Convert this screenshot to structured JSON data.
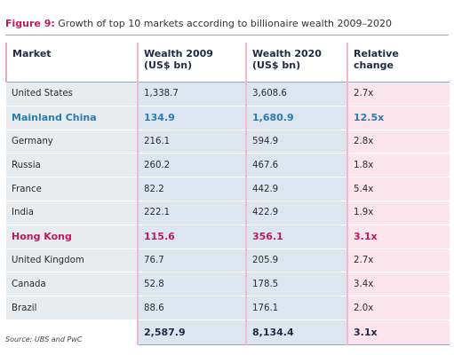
{
  "figure": {
    "label": "Figure 9:",
    "title": "Growth of top 10 markets according to billionaire wealth 2009–2020"
  },
  "table": {
    "headers": {
      "market": "Market",
      "wealth_2009_line1": "Wealth 2009",
      "wealth_2009_line2": "(US$ bn)",
      "wealth_2020_line1": "Wealth 2020",
      "wealth_2020_line2": "(US$ bn)",
      "relative_line1": "Relative",
      "relative_line2": "change"
    },
    "rows": [
      {
        "market": "United States",
        "w2009": "1,338.7",
        "w2020": "3,608.6",
        "rel": "2.7x"
      },
      {
        "market": "Mainland China",
        "w2009": "134.9",
        "w2020": "1,680.9",
        "rel": "12.5x"
      },
      {
        "market": "Germany",
        "w2009": "216.1",
        "w2020": "594.9",
        "rel": "2.8x"
      },
      {
        "market": "Russia",
        "w2009": "260.2",
        "w2020": "467.6",
        "rel": "1.8x"
      },
      {
        "market": "France",
        "w2009": "82.2",
        "w2020": "442.9",
        "rel": "5.4x"
      },
      {
        "market": "India",
        "w2009": "222.1",
        "w2020": "422.9",
        "rel": "1.9x"
      },
      {
        "market": "Hong Kong",
        "w2009": "115.6",
        "w2020": "356.1",
        "rel": "3.1x"
      },
      {
        "market": "United Kingdom",
        "w2009": "76.7",
        "w2020": "205.9",
        "rel": "2.7x"
      },
      {
        "market": "Canada",
        "w2009": "52.8",
        "w2020": "178.5",
        "rel": "3.4x"
      },
      {
        "market": "Brazil",
        "w2009": "88.6",
        "w2020": "176.1",
        "rel": "2.0x"
      }
    ],
    "total": {
      "w2009": "2,587.9",
      "w2020": "8,134.4",
      "rel": "3.1x"
    }
  },
  "source": "Source: UBS and PwC",
  "colors": {
    "accent_pink": "#c0185f",
    "accent_blue": "#2a7bb0",
    "wealth_column_bg": "#dde6ee",
    "relative_column_bg": "#fbe4ec",
    "market_column_bg": "#e9ecef"
  },
  "chart_data": {
    "type": "table",
    "columns": [
      "Market",
      "Wealth 2009 (US$ bn)",
      "Wealth 2020 (US$ bn)",
      "Relative change"
    ],
    "rows": [
      [
        "United States",
        1338.7,
        3608.6,
        "2.7x"
      ],
      [
        "Mainland China",
        134.9,
        1680.9,
        "12.5x"
      ],
      [
        "Germany",
        216.1,
        594.9,
        "2.8x"
      ],
      [
        "Russia",
        260.2,
        467.6,
        "1.8x"
      ],
      [
        "France",
        82.2,
        442.9,
        "5.4x"
      ],
      [
        "India",
        222.1,
        422.9,
        "1.9x"
      ],
      [
        "Hong Kong",
        115.6,
        356.1,
        "3.1x"
      ],
      [
        "United Kingdom",
        76.7,
        205.9,
        "2.7x"
      ],
      [
        "Canada",
        52.8,
        178.5,
        "3.4x"
      ],
      [
        "Brazil",
        88.6,
        176.1,
        "2.0x"
      ]
    ],
    "totals": [
      "",
      2587.9,
      8134.4,
      "3.1x"
    ],
    "highlighted_rows": {
      "Mainland China": "blue",
      "Hong Kong": "pink"
    }
  }
}
